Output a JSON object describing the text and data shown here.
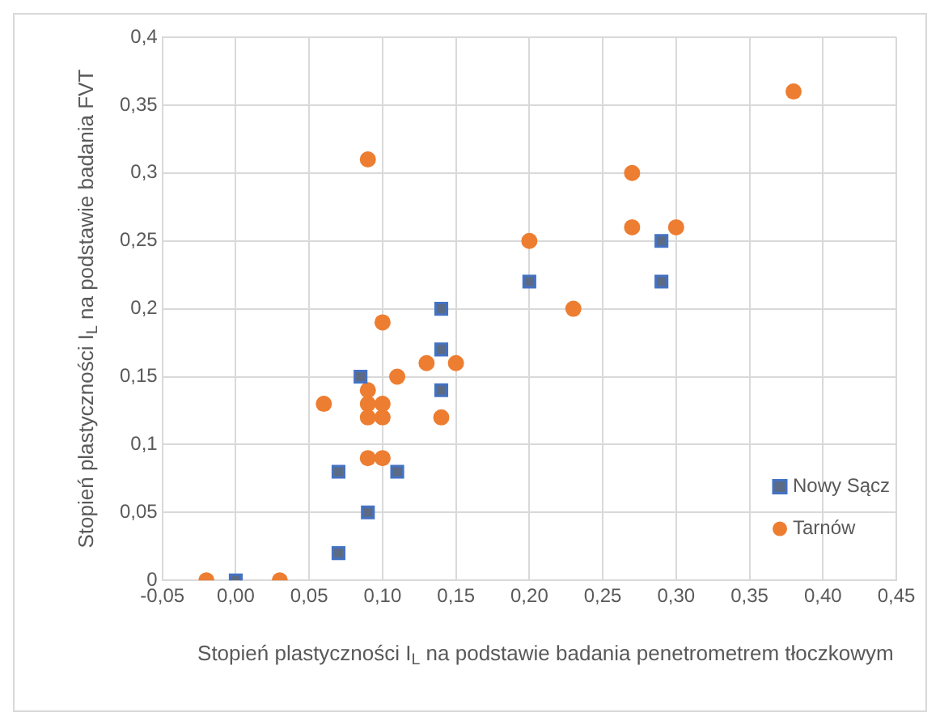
{
  "chart_data": {
    "type": "scatter",
    "xlabel": "Stopień plastyczności I$_{L}$ na podstawie badania penetrometrem tłoczkowym",
    "ylabel": "Stopień plastyczności I$_{L}$ na podstawie badania FVT",
    "xlim": [
      -0.05,
      0.45
    ],
    "xticks": [
      {
        "value": -0.05,
        "label": "-0,05"
      },
      {
        "value": 0,
        "label": "0,00"
      },
      {
        "value": 0.05,
        "label": "0,05"
      },
      {
        "value": 0.1,
        "label": "0,10"
      },
      {
        "value": 0.15,
        "label": "0,15"
      },
      {
        "value": 0.2,
        "label": "0,20"
      },
      {
        "value": 0.25,
        "label": "0,25"
      },
      {
        "value": 0.3,
        "label": "0,30"
      },
      {
        "value": 0.35,
        "label": "0,35"
      },
      {
        "value": 0.4,
        "label": "0,40"
      },
      {
        "value": 0.45,
        "label": "0,45"
      }
    ],
    "ylim": [
      0,
      0.4
    ],
    "yticks": [
      0,
      {
        "value": 0.05,
        "label": "0,05"
      },
      {
        "value": 0.1,
        "label": "0,1"
      },
      {
        "value": 0.15,
        "label": "0,15"
      },
      {
        "value": 0.2,
        "label": "0,2"
      },
      {
        "value": 0.25,
        "label": "0,25"
      },
      {
        "value": 0.3,
        "label": "0,3"
      },
      {
        "value": 0.35,
        "label": "0,35"
      },
      {
        "value": 0.4,
        "label": "0,4"
      }
    ],
    "grid": true,
    "legend": "right",
    "series": [
      {
        "name": "Nowy Sącz",
        "color": "#5b6b86",
        "marker": "square",
        "x": [
          0,
          0.07,
          0.07,
          0.085,
          0.09,
          0.11,
          0.14,
          0.14,
          0.14,
          0.2,
          0.29,
          0.29
        ],
        "values": [
          0,
          0.02,
          0.08,
          0.15,
          0.05,
          0.08,
          0.2,
          0.17,
          0.14,
          0.22,
          0.25,
          0.22
        ]
      },
      {
        "name": "Tarnów",
        "color": "#ed7d31",
        "marker": "circle",
        "x": [
          -0.02,
          0.03,
          0.06,
          0.09,
          0.09,
          0.09,
          0.09,
          0.09,
          0.1,
          0.1,
          0.1,
          0.1,
          0.11,
          0.13,
          0.14,
          0.15,
          0.2,
          0.23,
          0.27,
          0.27,
          0.3,
          0.38
        ],
        "values": [
          0,
          0,
          0.13,
          0.31,
          0.14,
          0.13,
          0.12,
          0.09,
          0.19,
          0.13,
          0.12,
          0.09,
          0.15,
          0.16,
          0.12,
          0.16,
          0.25,
          0.2,
          0.3,
          0.26,
          0.26,
          0.36
        ]
      }
    ]
  }
}
